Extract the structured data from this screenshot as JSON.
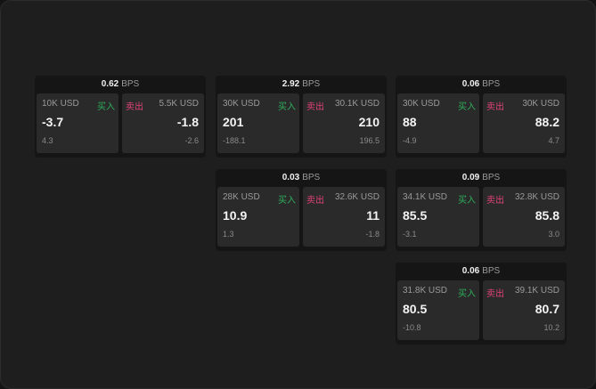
{
  "unit_label": "BPS",
  "buy_label": "买入",
  "sell_label": "卖出",
  "colors": {
    "buy": "#2fae5c",
    "sell": "#e0427a"
  },
  "cards": [
    {
      "spread": "0.62",
      "buy": {
        "qty": "10K USD",
        "price": "-3.7",
        "diff": "4.3"
      },
      "sell": {
        "qty": "5.5K USD",
        "price": "-1.8",
        "diff": "-2.6"
      }
    },
    {
      "spread": "2.92",
      "buy": {
        "qty": "30K USD",
        "price": "201",
        "diff": "-188.1"
      },
      "sell": {
        "qty": "30.1K USD",
        "price": "210",
        "diff": "196.5"
      }
    },
    {
      "spread": "0.06",
      "buy": {
        "qty": "30K USD",
        "price": "88",
        "diff": "-4.9"
      },
      "sell": {
        "qty": "30K USD",
        "price": "88.2",
        "diff": "4.7"
      }
    },
    {
      "spread": "0.03",
      "buy": {
        "qty": "28K USD",
        "price": "10.9",
        "diff": "1.3"
      },
      "sell": {
        "qty": "32.6K USD",
        "price": "11",
        "diff": "-1.8"
      }
    },
    {
      "spread": "0.09",
      "buy": {
        "qty": "34.1K USD",
        "price": "85.5",
        "diff": "-3.1"
      },
      "sell": {
        "qty": "32.8K USD",
        "price": "85.8",
        "diff": "3.0"
      }
    },
    {
      "spread": "0.06",
      "buy": {
        "qty": "31.8K USD",
        "price": "80.5",
        "diff": "-10.8"
      },
      "sell": {
        "qty": "39.1K USD",
        "price": "80.7",
        "diff": "10.2"
      }
    }
  ]
}
